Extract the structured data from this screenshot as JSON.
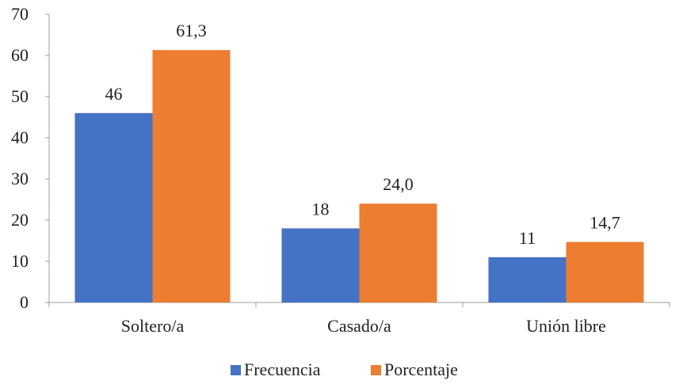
{
  "chart_data": {
    "type": "bar",
    "title": "",
    "xlabel": "",
    "ylabel": "",
    "categories": [
      "Soltero/a",
      "Casado/a",
      "Unión libre"
    ],
    "series": [
      {
        "name": "Frecuencia",
        "values": [
          46,
          18,
          11
        ],
        "labels": [
          "46",
          "18",
          "11"
        ],
        "color": "#4472C4"
      },
      {
        "name": "Porcentaje",
        "values": [
          61.3,
          24.0,
          14.7
        ],
        "labels": [
          "61,3",
          "24,0",
          "14,7"
        ],
        "color": "#ED7D31"
      }
    ],
    "ylim": [
      0,
      70
    ],
    "yticks": [
      0,
      10,
      20,
      30,
      40,
      50,
      60,
      70
    ],
    "grid": false,
    "legend": "bottom"
  }
}
